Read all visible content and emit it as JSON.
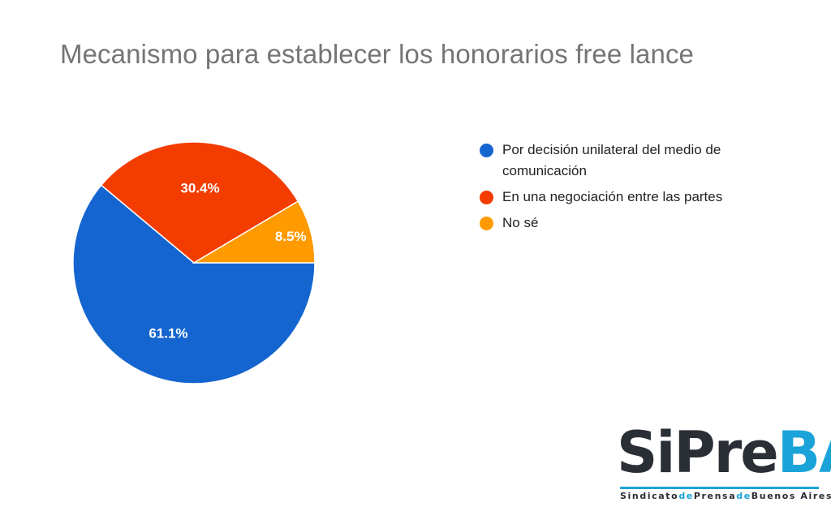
{
  "chart_data": {
    "type": "pie",
    "title": "Mecanismo para establecer los honorarios free lance",
    "slices": [
      {
        "label": "Por decisión unilateral del medio de comunicación",
        "value": 61.1,
        "value_label": "61.1%",
        "color": "#1565d0"
      },
      {
        "label": "En una negociación entre las partes",
        "value": 30.4,
        "value_label": "30.4%",
        "color": "#f33c00"
      },
      {
        "label": "No sé",
        "value": 8.5,
        "value_label": "8.5%",
        "color": "#ff9a00"
      }
    ],
    "legend_position": "right"
  },
  "legend": {
    "items": [
      {
        "label": "Por decisión unilateral del medio de comunicación",
        "color": "#1565d0"
      },
      {
        "label": "En una negociación entre las partes",
        "color": "#f33c00"
      },
      {
        "label": "No sé",
        "color": "#ff9a00"
      }
    ]
  },
  "logo": {
    "word_part1": "Si",
    "word_part2": "Pre",
    "word_part3": "BA",
    "tagline_1": "Sindicato",
    "tagline_de1": "de",
    "tagline_2": "Prensa",
    "tagline_de2": "de",
    "tagline_3": "Buenos Aires",
    "colors": {
      "dark": "#2a2e35",
      "accent": "#1aa3d8"
    }
  }
}
